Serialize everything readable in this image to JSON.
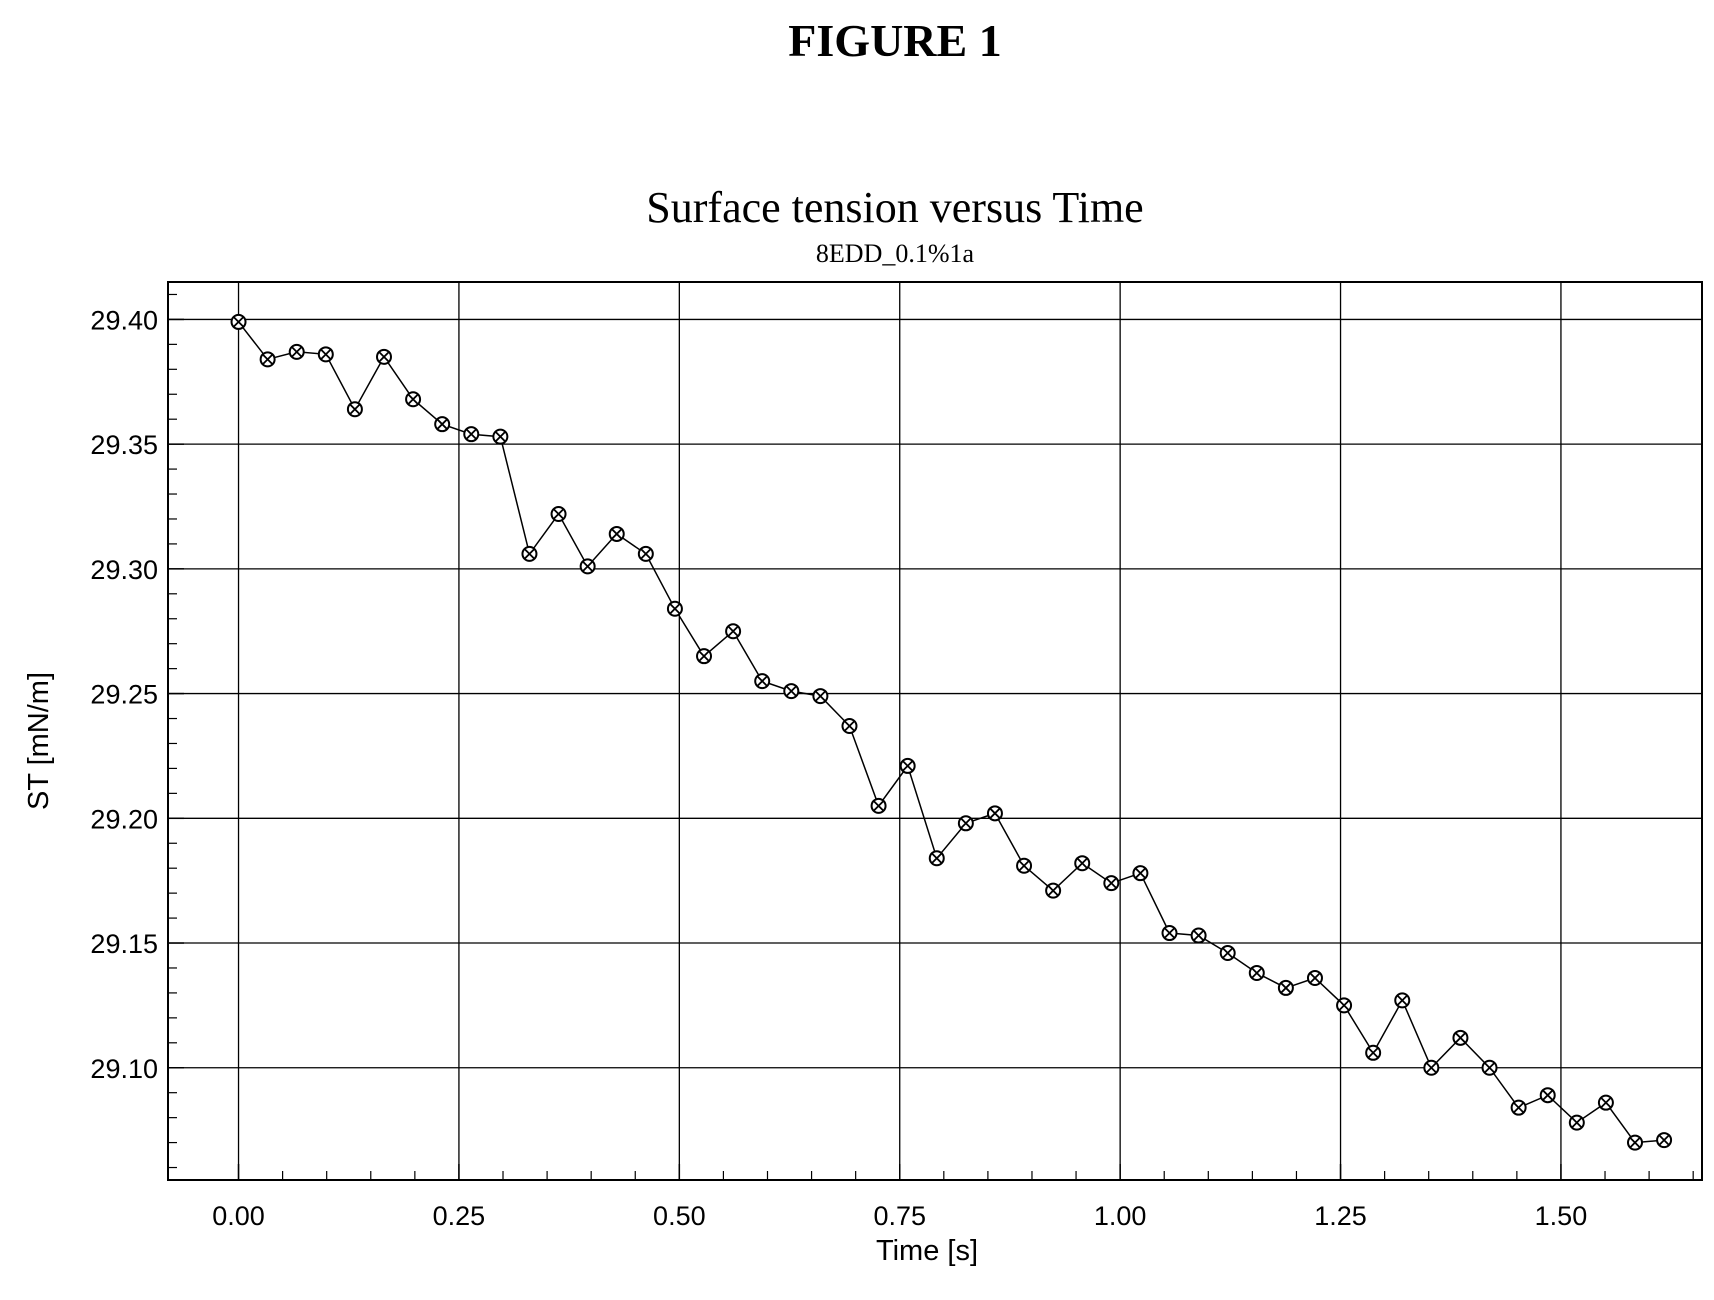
{
  "figure_label": "FIGURE 1",
  "chart_data": {
    "type": "line",
    "title": "Surface tension versus Time",
    "subtitle": "8EDD_0.1%1a",
    "xlabel": "Time [s]",
    "ylabel": "ST [mN/m]",
    "xlim": [
      -0.08,
      1.66
    ],
    "ylim": [
      29.055,
      29.415
    ],
    "xticks": [
      "0.00",
      "0.25",
      "0.50",
      "0.75",
      "1.00",
      "1.25",
      "1.50"
    ],
    "yticks": [
      "29.10",
      "29.15",
      "29.20",
      "29.25",
      "29.30",
      "29.35",
      "29.40"
    ],
    "grid": true,
    "marker": "circled-cross",
    "color": "#000000",
    "series": [
      {
        "x": [
          0.0,
          0.033,
          0.066,
          0.099,
          0.132,
          0.165,
          0.198,
          0.231,
          0.264,
          0.297,
          0.33,
          0.363,
          0.396,
          0.429,
          0.462,
          0.495,
          0.528,
          0.561,
          0.594,
          0.627,
          0.66,
          0.693,
          0.726,
          0.759,
          0.792,
          0.825,
          0.858,
          0.891,
          0.924,
          0.957,
          0.99,
          1.023,
          1.056,
          1.089,
          1.122,
          1.155,
          1.188,
          1.221,
          1.254,
          1.287,
          1.32,
          1.353,
          1.386,
          1.419,
          1.452,
          1.485,
          1.518,
          1.551,
          1.584,
          1.617
        ],
        "y": [
          29.399,
          29.384,
          29.387,
          29.386,
          29.364,
          29.385,
          29.368,
          29.358,
          29.354,
          29.353,
          29.306,
          29.322,
          29.301,
          29.314,
          29.306,
          29.284,
          29.265,
          29.275,
          29.255,
          29.251,
          29.249,
          29.237,
          29.205,
          29.221,
          29.184,
          29.198,
          29.202,
          29.181,
          29.171,
          29.182,
          29.174,
          29.178,
          29.154,
          29.153,
          29.146,
          29.138,
          29.132,
          29.136,
          29.125,
          29.106,
          29.127,
          29.1,
          29.112,
          29.1,
          29.084,
          29.089,
          29.078,
          29.086,
          29.07,
          29.071
        ]
      }
    ]
  }
}
